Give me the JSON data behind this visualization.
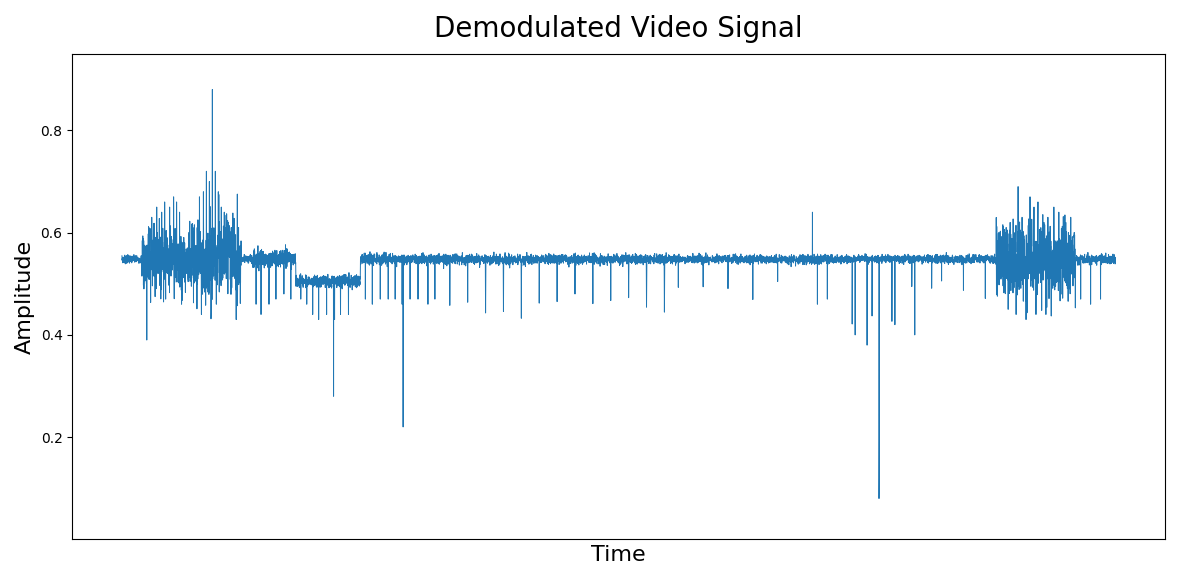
{
  "title": "Demodulated Video Signal",
  "xlabel": "Time",
  "ylabel": "Amplitude",
  "ylim": [
    0.0,
    0.95
  ],
  "yticks": [
    0.2,
    0.4,
    0.6,
    0.8
  ],
  "line_color": "#2077b4",
  "line_width": 0.7,
  "background_color": "#ffffff",
  "n_samples": 8000,
  "base_amplitude": 0.548,
  "noise_level": 0.004,
  "title_fontsize": 20,
  "label_fontsize": 16
}
